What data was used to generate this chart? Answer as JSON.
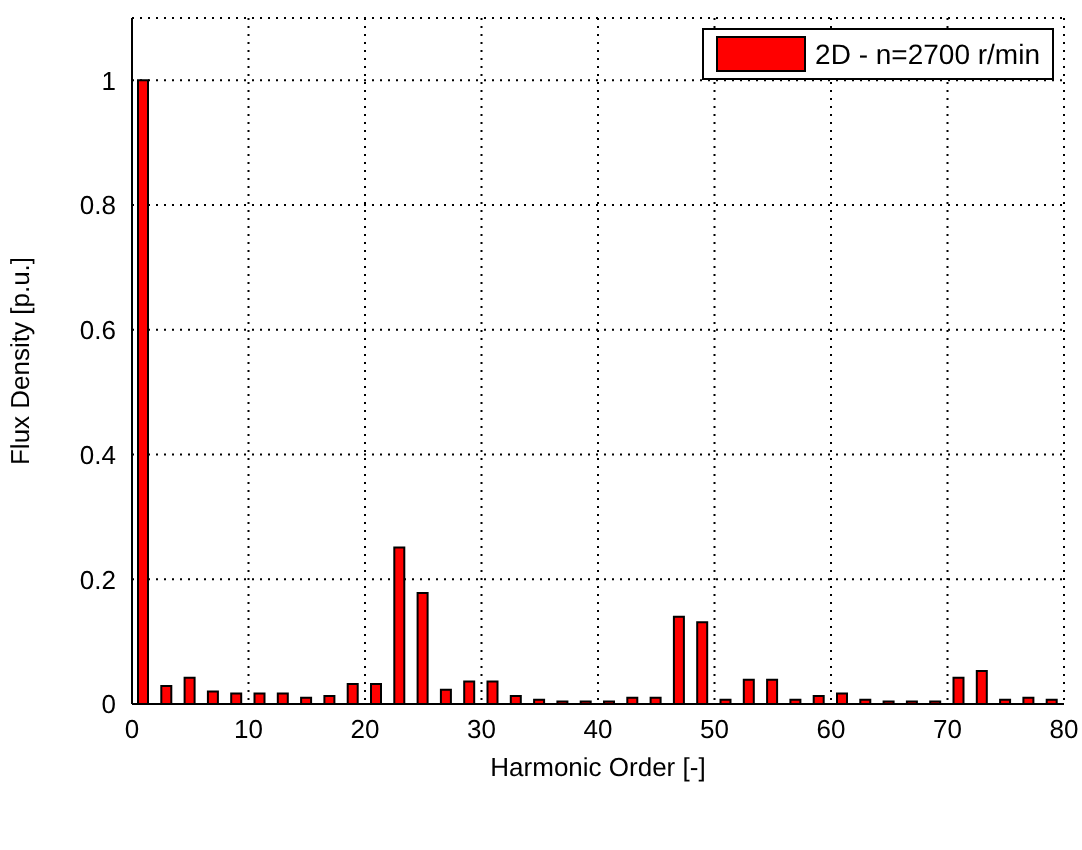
{
  "chart_data": {
    "type": "bar",
    "xlabel": "Harmonic Order [-]",
    "ylabel": "Flux Density [p.u.]",
    "x": [
      1,
      3,
      5,
      7,
      9,
      11,
      13,
      15,
      17,
      19,
      21,
      23,
      25,
      27,
      29,
      31,
      33,
      35,
      37,
      39,
      41,
      43,
      45,
      47,
      49,
      51,
      53,
      55,
      57,
      59,
      61,
      63,
      65,
      67,
      69,
      71,
      73,
      75,
      77,
      79
    ],
    "series": [
      {
        "name": "2D - n=2700 r/min",
        "color": "#ff0000",
        "values": [
          1.0,
          0.029,
          0.042,
          0.02,
          0.017,
          0.017,
          0.017,
          0.01,
          0.013,
          0.032,
          0.032,
          0.251,
          0.178,
          0.023,
          0.036,
          0.036,
          0.013,
          0.007,
          0.004,
          0.004,
          0.004,
          0.01,
          0.01,
          0.14,
          0.131,
          0.007,
          0.039,
          0.039,
          0.007,
          0.013,
          0.017,
          0.007,
          0.004,
          0.004,
          0.004,
          0.042,
          0.053,
          0.007,
          0.01,
          0.007
        ]
      }
    ],
    "xlim": [
      0,
      80
    ],
    "xticks": [
      0,
      10,
      20,
      30,
      40,
      50,
      60,
      70,
      80
    ],
    "ylim": [
      0,
      1.1
    ],
    "yticks": [
      0,
      0.2,
      0.4,
      0.6,
      0.8,
      1
    ],
    "grid": true,
    "legend": "top right"
  }
}
